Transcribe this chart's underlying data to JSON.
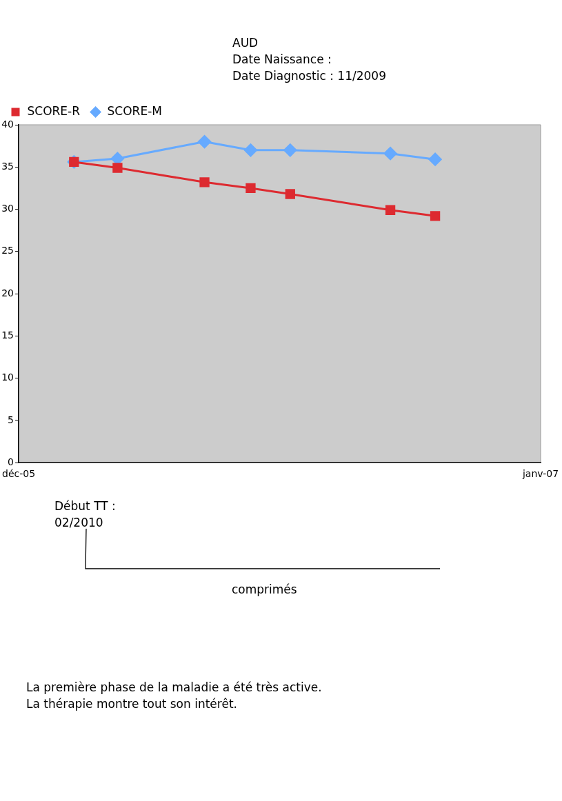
{
  "chart_data": {
    "type": "line",
    "title": "AUD",
    "subtitle": "Date Naissance :\nDate Diagnostic : 11/2009",
    "x": [
      "2006-01-12",
      "2006-02-14",
      "2006-04-21",
      "2006-05-26",
      "2006-06-25",
      "2006-09-09",
      "2006-10-13"
    ],
    "series": [
      {
        "name": "SCORE-M",
        "color": "#66aaff",
        "marker": "diamond",
        "values": [
          35.6,
          36.0,
          38.0,
          37.0,
          37.0,
          36.6,
          35.9
        ]
      },
      {
        "name": "SCORE-R",
        "color": "#dd2a30",
        "marker": "square",
        "values": [
          35.6,
          34.9,
          33.2,
          32.5,
          31.8,
          29.9,
          29.2
        ]
      }
    ],
    "xlim": [
      "2005-12-01",
      "2007-01-01"
    ],
    "xticks": [
      {
        "value": "2005-12-01",
        "label": "déc-05"
      },
      {
        "value": "2007-01-01",
        "label": "janv-07"
      }
    ],
    "ylim": [
      0,
      40
    ],
    "yticks": [
      0,
      5,
      10,
      15,
      20,
      25,
      30,
      35,
      40
    ],
    "grid": false,
    "legend": "top left",
    "line_style": "solid",
    "annotations": [
      "Début TT :\n02/2010",
      "comprimés",
      "La première phase de la maladie a été très active.\nLa thérapie montre tout son intérêt."
    ]
  }
}
